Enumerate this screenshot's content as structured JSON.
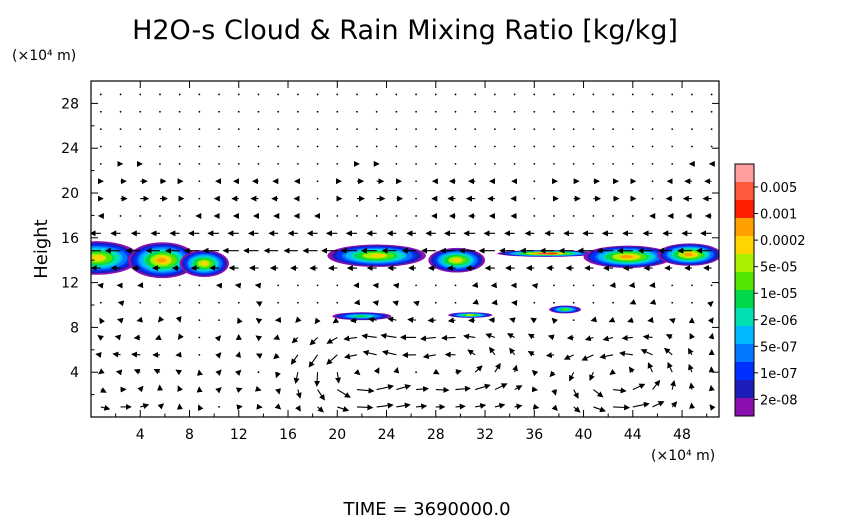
{
  "chart_data": {
    "type": "contour-vector",
    "title": "H2O-s Cloud & Rain Mixing Ratio [kg/kg]",
    "ylabel": "Height",
    "xunit": "(×10⁴ m)",
    "yunit": "(×10⁴ m)",
    "xlim": [
      0,
      51
    ],
    "ylim": [
      0,
      30
    ],
    "xticks": [
      4,
      8,
      12,
      16,
      20,
      24,
      28,
      32,
      36,
      40,
      44,
      48
    ],
    "yticks": [
      4,
      8,
      12,
      16,
      20,
      24,
      28
    ],
    "time_label": "TIME = 3690000.0",
    "colorbar": {
      "labels": [
        "0.005",
        "0.001",
        "0.0002",
        "5e-05",
        "1e-05",
        "2e-06",
        "5e-07",
        "1e-07",
        "2e-08"
      ],
      "colors": [
        "#ff9e9e",
        "#ff5a3c",
        "#ff1e00",
        "#ffa000",
        "#ffd400",
        "#aaf000",
        "#50e600",
        "#00d84a",
        "#00e0b0",
        "#00b8ff",
        "#0078ff",
        "#0030ff",
        "#1c1cb8",
        "#8a10b0"
      ]
    },
    "cloud_patches": [
      {
        "x": 0.5,
        "y": 14.2,
        "rx": 3.4,
        "ry": 1.5,
        "level": 0.7
      },
      {
        "x": 5.8,
        "y": 14.0,
        "rx": 2.8,
        "ry": 1.6,
        "level": 0.75
      },
      {
        "x": 9.2,
        "y": 13.7,
        "rx": 2.0,
        "ry": 1.2,
        "level": 0.7
      },
      {
        "x": 23.2,
        "y": 14.4,
        "rx": 4.0,
        "ry": 1.0,
        "level": 0.7
      },
      {
        "x": 29.7,
        "y": 14.0,
        "rx": 2.3,
        "ry": 1.1,
        "level": 0.7
      },
      {
        "x": 37.0,
        "y": 14.6,
        "rx": 4.0,
        "ry": 0.3,
        "level": 0.95
      },
      {
        "x": 43.6,
        "y": 14.3,
        "rx": 3.6,
        "ry": 1.0,
        "level": 0.75
      },
      {
        "x": 48.6,
        "y": 14.5,
        "rx": 2.6,
        "ry": 1.0,
        "level": 0.75
      },
      {
        "x": 22.0,
        "y": 9.0,
        "rx": 2.4,
        "ry": 0.35,
        "level": 0.45
      },
      {
        "x": 30.8,
        "y": 9.1,
        "rx": 1.8,
        "ry": 0.25,
        "level": 0.65
      },
      {
        "x": 38.5,
        "y": 9.6,
        "rx": 1.3,
        "ry": 0.35,
        "level": 0.55
      }
    ],
    "vortex_centers": [
      {
        "x": 21.5,
        "y": 4.0,
        "strength": 1.0
      },
      {
        "x": 29.5,
        "y": 4.5,
        "strength": 1.0
      },
      {
        "x": 42.5,
        "y": 3.5,
        "strength": 1.0
      },
      {
        "x": 2.5,
        "y": 3.0,
        "strength": 0.5
      }
    ]
  }
}
